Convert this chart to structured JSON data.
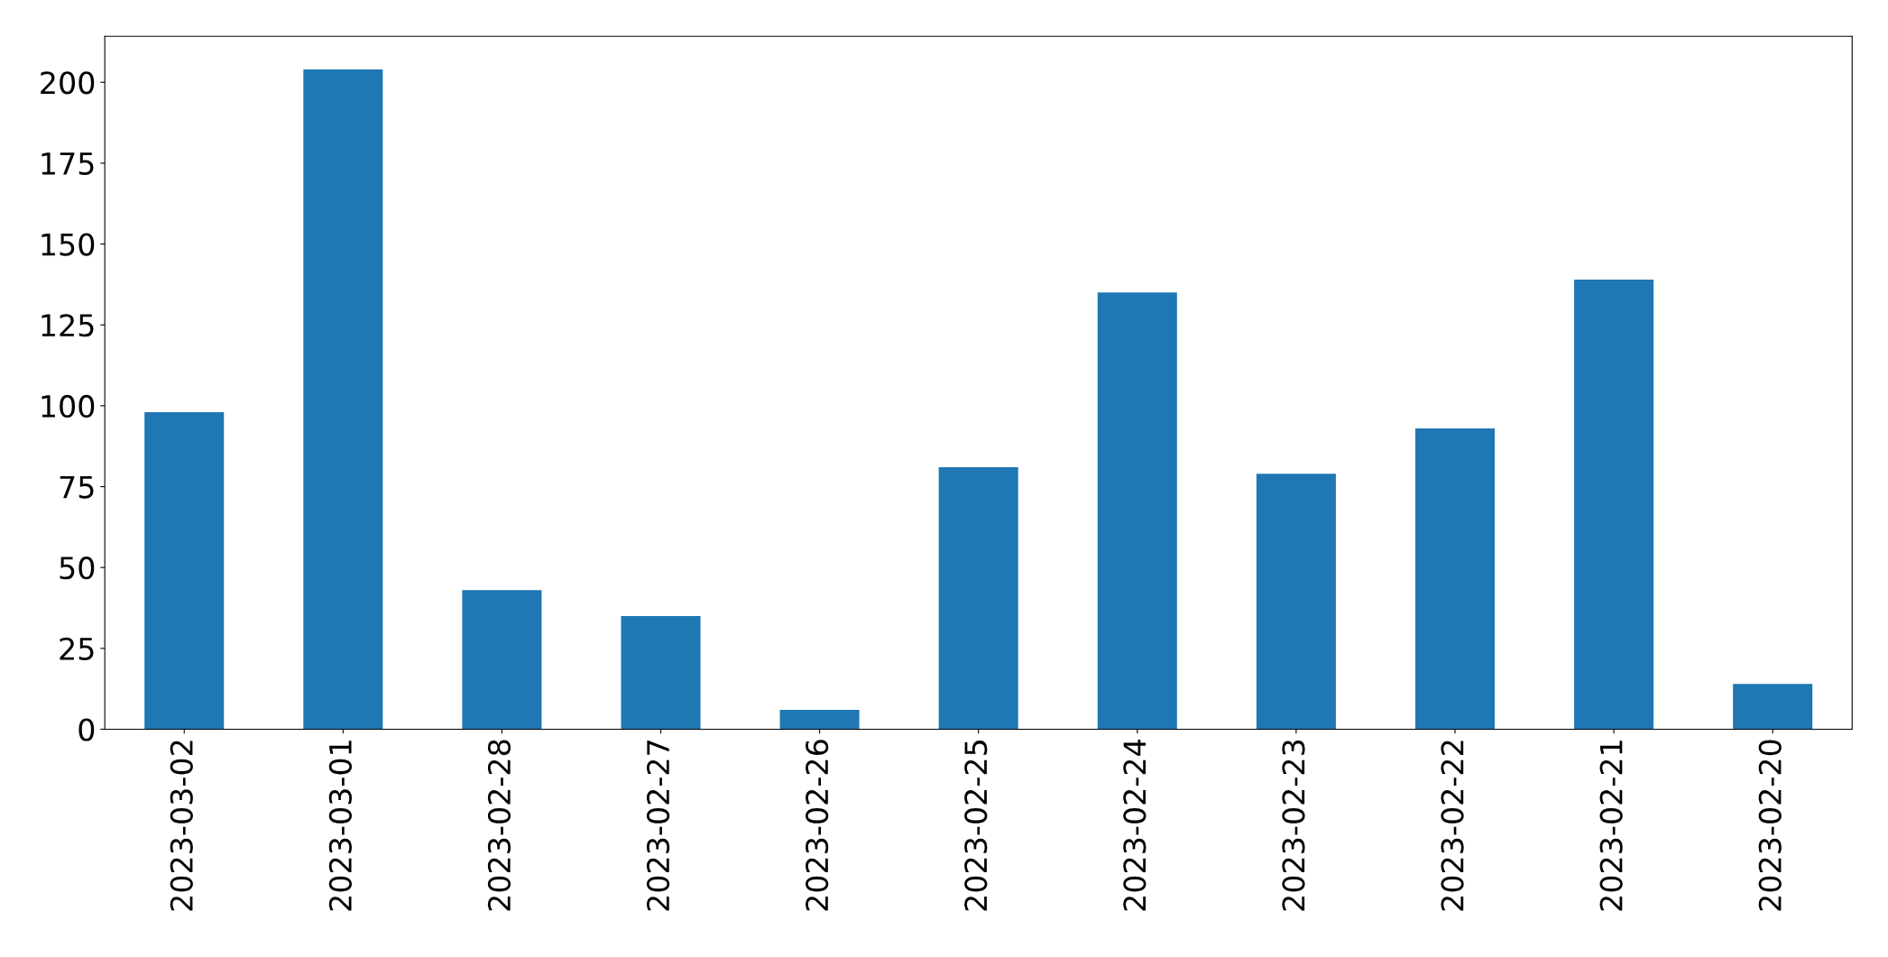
{
  "chart_data": {
    "type": "bar",
    "categories": [
      "2023-03-02",
      "2023-03-01",
      "2023-02-28",
      "2023-02-27",
      "2023-02-26",
      "2023-02-25",
      "2023-02-24",
      "2023-02-23",
      "2023-02-22",
      "2023-02-21",
      "2023-02-20"
    ],
    "values": [
      98,
      204,
      43,
      35,
      6,
      81,
      135,
      79,
      93,
      139,
      14
    ],
    "color": "#1f77b4",
    "ylim": [
      0,
      214.2
    ],
    "yticks": [
      0,
      25,
      50,
      75,
      100,
      125,
      150,
      175,
      200
    ],
    "grid": false,
    "legend": false
  }
}
